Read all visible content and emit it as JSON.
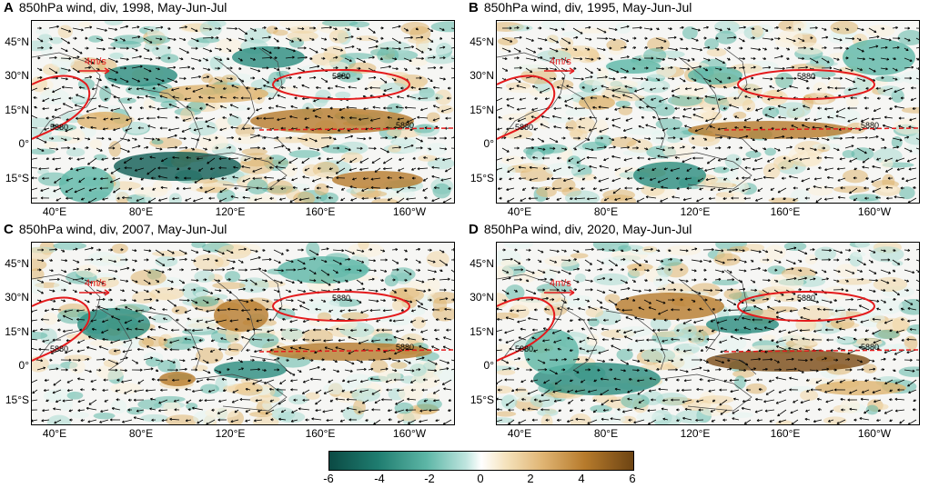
{
  "panels": [
    {
      "letter": "A",
      "title": "850hPa wind, div, 1998, May-Jun-Jul",
      "scale": "4m/s",
      "contour": "5880"
    },
    {
      "letter": "B",
      "title": "850hPa wind, div, 1995, May-Jun-Jul",
      "scale": "4m/s",
      "contour": "5880"
    },
    {
      "letter": "C",
      "title": "850hPa wind, div, 2007, May-Jun-Jul",
      "scale": "4m/s",
      "contour": "5880"
    },
    {
      "letter": "D",
      "title": "850hPa wind, div, 2020, May-Jun-Jul",
      "scale": "4m/s",
      "contour": "5880"
    }
  ],
  "lat_ticks": [
    "45°N",
    "30°N",
    "15°N",
    "0°",
    "15°S"
  ],
  "lon_ticks": [
    "40°E",
    "80°E",
    "120°E",
    "160°E",
    "160°W"
  ],
  "colorbar": {
    "ticks": [
      "-6",
      "-4",
      "-2",
      "0",
      "2",
      "4",
      "6"
    ],
    "colors": {
      "negative": "#1f7d70",
      "zero": "#ffffff",
      "positive": "#b77b2c"
    }
  },
  "colors": {
    "contour": "#e41a1c",
    "vector": "#000000",
    "coast": "#444444"
  }
}
